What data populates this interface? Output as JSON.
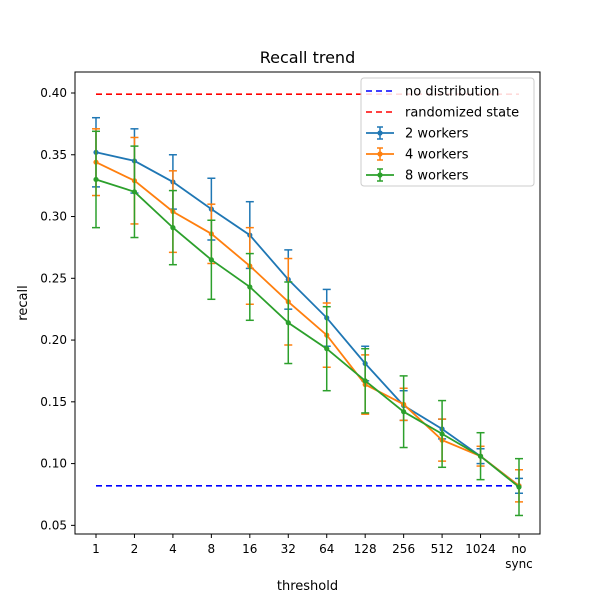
{
  "chart_data": {
    "type": "line",
    "title": "Recall trend",
    "xlabel": "threshold",
    "ylabel": "recall",
    "categories": [
      "1",
      "2",
      "4",
      "8",
      "16",
      "32",
      "64",
      "128",
      "256",
      "512",
      "1024",
      "no\nsync"
    ],
    "ylim": [
      0.043,
      0.417
    ],
    "yticks": [
      0.05,
      0.1,
      0.15,
      0.2,
      0.25,
      0.3,
      0.35,
      0.4
    ],
    "ytick_labels": [
      "0.05",
      "0.10",
      "0.15",
      "0.20",
      "0.25",
      "0.30",
      "0.35",
      "0.40"
    ],
    "grid": false,
    "legend_position": "top-right",
    "reference_lines": [
      {
        "name": "no distribution",
        "value": 0.082,
        "color": "#0000ff",
        "style": "dashed"
      },
      {
        "name": "randomized state",
        "value": 0.399,
        "color": "#ff0000",
        "style": "dashed"
      }
    ],
    "series": [
      {
        "name": "2 workers",
        "color": "#1f77b4",
        "values": [
          0.352,
          0.345,
          0.328,
          0.306,
          0.285,
          0.249,
          0.218,
          0.181,
          0.147,
          0.128,
          0.106,
          0.082
        ],
        "errors": [
          0.028,
          0.026,
          0.022,
          0.025,
          0.027,
          0.024,
          0.023,
          0.014,
          0.012,
          0.008,
          0.006,
          0.006
        ]
      },
      {
        "name": "4 workers",
        "color": "#ff7f0e",
        "values": [
          0.344,
          0.329,
          0.304,
          0.286,
          0.26,
          0.231,
          0.204,
          0.164,
          0.148,
          0.119,
          0.106,
          0.082
        ],
        "errors": [
          0.027,
          0.035,
          0.033,
          0.024,
          0.031,
          0.035,
          0.026,
          0.024,
          0.013,
          0.017,
          0.008,
          0.013
        ]
      },
      {
        "name": "8 workers",
        "color": "#2ca02c",
        "values": [
          0.33,
          0.32,
          0.291,
          0.265,
          0.243,
          0.214,
          0.193,
          0.167,
          0.142,
          0.124,
          0.106,
          0.081
        ],
        "errors": [
          0.039,
          0.037,
          0.03,
          0.032,
          0.027,
          0.033,
          0.034,
          0.026,
          0.029,
          0.027,
          0.019,
          0.023
        ]
      }
    ]
  }
}
